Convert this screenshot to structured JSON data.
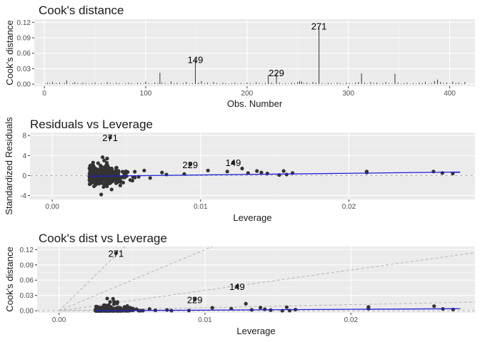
{
  "colors": {
    "panel_bg": "#ebebeb",
    "grid_major": "#ffffff",
    "grid_minor": "#f4f4f4",
    "points": "#333333",
    "smooth_line": "#1f1fd6",
    "reference_line": "#b3b3b3"
  },
  "chart_data": [
    {
      "type": "bar",
      "title": "Cook's distance",
      "xlabel": "Obs. Number",
      "ylabel": "Cook's distance",
      "xlim": [
        -10,
        425
      ],
      "ylim": [
        -0.004,
        0.126
      ],
      "xticks": [
        0,
        100,
        200,
        300,
        400
      ],
      "xtick_labels": [
        "0",
        "100",
        "200",
        "300",
        "400"
      ],
      "yticks": [
        0,
        0.03,
        0.06,
        0.09,
        0.12
      ],
      "ytick_labels": [
        "0.00",
        "0.03",
        "0.06",
        "0.09",
        "0.12"
      ],
      "bars": [
        [
          1,
          0.001
        ],
        [
          3,
          0.003
        ],
        [
          5,
          0.002
        ],
        [
          8,
          0.004
        ],
        [
          10,
          0.001
        ],
        [
          12,
          0.002
        ],
        [
          15,
          0.003
        ],
        [
          18,
          0.001
        ],
        [
          20,
          0.002
        ],
        [
          22,
          0.007
        ],
        [
          25,
          0.001
        ],
        [
          28,
          0.002
        ],
        [
          30,
          0.004
        ],
        [
          33,
          0.002
        ],
        [
          36,
          0.001
        ],
        [
          38,
          0.003
        ],
        [
          41,
          0.002
        ],
        [
          44,
          0.001
        ],
        [
          47,
          0.002
        ],
        [
          50,
          0.003
        ],
        [
          53,
          0.001
        ],
        [
          56,
          0.002
        ],
        [
          59,
          0.001
        ],
        [
          62,
          0.004
        ],
        [
          65,
          0.002
        ],
        [
          68,
          0.001
        ],
        [
          71,
          0.003
        ],
        [
          74,
          0.002
        ],
        [
          77,
          0.001
        ],
        [
          80,
          0.002
        ],
        [
          83,
          0.003
        ],
        [
          86,
          0.002
        ],
        [
          89,
          0.001
        ],
        [
          92,
          0.003
        ],
        [
          95,
          0.002
        ],
        [
          98,
          0.001
        ],
        [
          100,
          0.005
        ],
        [
          103,
          0.002
        ],
        [
          106,
          0.001
        ],
        [
          109,
          0.003
        ],
        [
          112,
          0.002
        ],
        [
          114,
          0.022
        ],
        [
          116,
          0.003
        ],
        [
          119,
          0.002
        ],
        [
          122,
          0.001
        ],
        [
          125,
          0.005
        ],
        [
          128,
          0.002
        ],
        [
          131,
          0.003
        ],
        [
          134,
          0.001
        ],
        [
          137,
          0.002
        ],
        [
          140,
          0.004
        ],
        [
          143,
          0.001
        ],
        [
          146,
          0.002
        ],
        [
          149,
          0.048
        ],
        [
          152,
          0.003
        ],
        [
          155,
          0.006
        ],
        [
          158,
          0.002
        ],
        [
          161,
          0.003
        ],
        [
          164,
          0.001
        ],
        [
          167,
          0.004
        ],
        [
          170,
          0.002
        ],
        [
          173,
          0.001
        ],
        [
          176,
          0.003
        ],
        [
          179,
          0.002
        ],
        [
          182,
          0.001
        ],
        [
          185,
          0.002
        ],
        [
          188,
          0.003
        ],
        [
          191,
          0.001
        ],
        [
          194,
          0.002
        ],
        [
          197,
          0.001
        ],
        [
          200,
          0.003
        ],
        [
          203,
          0.002
        ],
        [
          206,
          0.001
        ],
        [
          209,
          0.004
        ],
        [
          212,
          0.002
        ],
        [
          215,
          0.001
        ],
        [
          218,
          0.002
        ],
        [
          221,
          0.018
        ],
        [
          224,
          0.003
        ],
        [
          226,
          0.001
        ],
        [
          229,
          0.022
        ],
        [
          232,
          0.003
        ],
        [
          235,
          0.001
        ],
        [
          238,
          0.002
        ],
        [
          241,
          0.001
        ],
        [
          244,
          0.003
        ],
        [
          247,
          0.002
        ],
        [
          250,
          0.004
        ],
        [
          252,
          0.006
        ],
        [
          254,
          0.005
        ],
        [
          256,
          0.002
        ],
        [
          259,
          0.003
        ],
        [
          262,
          0.001
        ],
        [
          265,
          0.004
        ],
        [
          268,
          0.003
        ],
        [
          271,
          0.113
        ],
        [
          274,
          0.002
        ],
        [
          277,
          0.001
        ],
        [
          280,
          0.003
        ],
        [
          283,
          0.002
        ],
        [
          286,
          0.001
        ],
        [
          289,
          0.003
        ],
        [
          292,
          0.002
        ],
        [
          295,
          0.001
        ],
        [
          298,
          0.003
        ],
        [
          301,
          0.002
        ],
        [
          304,
          0.001
        ],
        [
          307,
          0.003
        ],
        [
          310,
          0.004
        ],
        [
          313,
          0.021
        ],
        [
          316,
          0.003
        ],
        [
          319,
          0.001
        ],
        [
          322,
          0.004
        ],
        [
          325,
          0.002
        ],
        [
          328,
          0.003
        ],
        [
          331,
          0.001
        ],
        [
          334,
          0.002
        ],
        [
          337,
          0.004
        ],
        [
          340,
          0.002
        ],
        [
          343,
          0.001
        ],
        [
          346,
          0.02
        ],
        [
          349,
          0.003
        ],
        [
          352,
          0.001
        ],
        [
          355,
          0.002
        ],
        [
          358,
          0.003
        ],
        [
          361,
          0.001
        ],
        [
          364,
          0.002
        ],
        [
          367,
          0.001
        ],
        [
          370,
          0.003
        ],
        [
          373,
          0.002
        ],
        [
          376,
          0.004
        ],
        [
          379,
          0.001
        ],
        [
          382,
          0.002
        ],
        [
          385,
          0.006
        ],
        [
          388,
          0.009
        ],
        [
          391,
          0.004
        ],
        [
          394,
          0.002
        ],
        [
          397,
          0.003
        ],
        [
          400,
          0.001
        ],
        [
          403,
          0.005
        ],
        [
          406,
          0.002
        ],
        [
          409,
          0.003
        ],
        [
          412,
          0.001
        ],
        [
          415,
          0.004
        ]
      ],
      "labels": [
        {
          "text": "271",
          "x": 271,
          "y": 0.113
        },
        {
          "text": "149",
          "x": 149,
          "y": 0.048
        },
        {
          "text": "229",
          "x": 229,
          "y": 0.022
        }
      ]
    },
    {
      "type": "scatter",
      "title": "Residuals vs Leverage",
      "xlabel": "Leverage",
      "ylabel": "Standardized Residuals",
      "xlim": [
        -0.0015,
        0.0285
      ],
      "ylim": [
        -4.8,
        8.6
      ],
      "xticks": [
        0,
        0.01,
        0.02
      ],
      "xtick_labels": [
        "0.00",
        "0.01",
        "0.02"
      ],
      "yticks": [
        -4,
        0,
        4,
        8
      ],
      "ytick_labels": [
        "-4",
        "0",
        "4",
        "8"
      ],
      "hline": 0,
      "smooth": [
        [
          0.0025,
          -0.15
        ],
        [
          0.0275,
          0.7
        ]
      ],
      "labels": [
        {
          "text": "271",
          "x": 0.0039,
          "y": 7.6
        },
        {
          "text": "229",
          "x": 0.0093,
          "y": 2.2
        },
        {
          "text": "149",
          "x": 0.0122,
          "y": 2.6
        }
      ]
    },
    {
      "type": "scatter",
      "title": "Cook's dist vs Leverage",
      "xlabel": "Leverage",
      "ylabel": "Cook's distance",
      "xlim": [
        -0.0015,
        0.0285
      ],
      "ylim": [
        -0.004,
        0.126
      ],
      "xticks": [
        0,
        0.01,
        0.02
      ],
      "xtick_labels": [
        "0.00",
        "0.01",
        "0.02"
      ],
      "yticks": [
        0,
        0.03,
        0.06,
        0.09,
        0.12
      ],
      "ytick_labels": [
        "0.00",
        "0.03",
        "0.06",
        "0.09",
        "0.12"
      ],
      "hline": 0,
      "smooth": [
        [
          0.0025,
          0.0
        ],
        [
          0.0275,
          0.004
        ]
      ],
      "reference_slopes": [
        28,
        12,
        4,
        0.6
      ],
      "labels": [
        {
          "text": "271",
          "x": 0.0039,
          "y": 0.113
        },
        {
          "text": "229",
          "x": 0.0093,
          "y": 0.022
        },
        {
          "text": "149",
          "x": 0.0122,
          "y": 0.048
        }
      ]
    }
  ]
}
